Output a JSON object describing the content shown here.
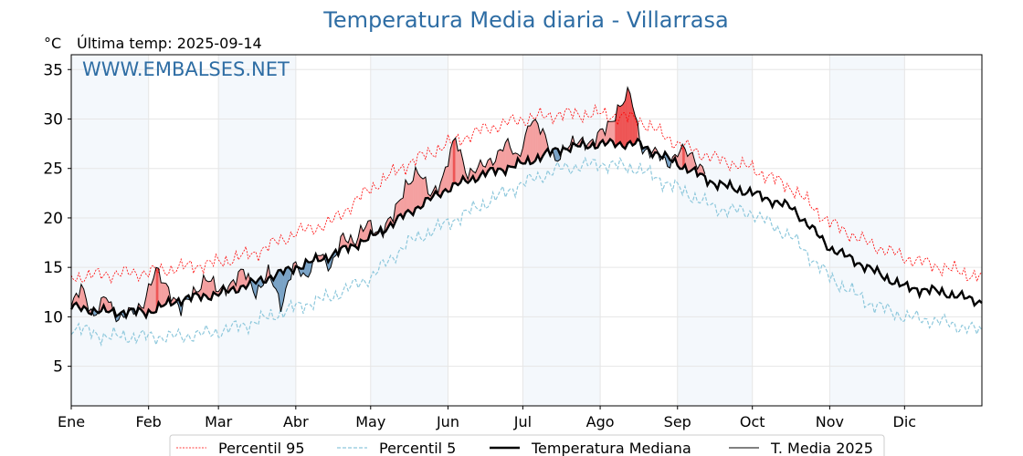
{
  "chart_data": {
    "type": "line",
    "title": "Temperatura Media diaria - Villarrasa",
    "unit_label": "°C",
    "last_temp_label": "Última temp: 2025-09-14",
    "watermark": "WWW.EMBALSES.NET",
    "ylim": [
      1,
      36.5
    ],
    "yticks": [
      5,
      10,
      15,
      20,
      25,
      30,
      35
    ],
    "xlim_days": [
      1,
      366
    ],
    "month_labels": [
      "Ene",
      "Feb",
      "Mar",
      "Abr",
      "May",
      "Jun",
      "Jul",
      "Ago",
      "Sep",
      "Oct",
      "Nov",
      "Dic"
    ],
    "month_start_days": [
      1,
      32,
      60,
      91,
      121,
      152,
      182,
      213,
      244,
      274,
      305,
      335
    ],
    "grid": true,
    "legend_position": "bottom",
    "colors": {
      "p95": "#ff0000",
      "p5": "#8ec8dc",
      "median": "#000000",
      "media2025": "#000000",
      "above_fill": "#f4a0a0",
      "above_fill_strong": "#ee5555",
      "below_fill": "#7aa3c6",
      "below_fill_strong": "#2f5f8a",
      "band": "#dce9f5",
      "title": "#2e6da4"
    },
    "series": [
      {
        "name": "Percentil 95",
        "key": "p95",
        "knots": [
          [
            1,
            14
          ],
          [
            15,
            14.3
          ],
          [
            32,
            14.5
          ],
          [
            45,
            15
          ],
          [
            60,
            15.5
          ],
          [
            75,
            16.5
          ],
          [
            91,
            18.5
          ],
          [
            105,
            19.5
          ],
          [
            121,
            23
          ],
          [
            136,
            25.5
          ],
          [
            152,
            27.5
          ],
          [
            167,
            29
          ],
          [
            182,
            30
          ],
          [
            197,
            30.5
          ],
          [
            213,
            30.5
          ],
          [
            228,
            30
          ],
          [
            244,
            27.5
          ],
          [
            259,
            26
          ],
          [
            274,
            25
          ],
          [
            290,
            23
          ],
          [
            305,
            19.5
          ],
          [
            320,
            17.5
          ],
          [
            335,
            16
          ],
          [
            350,
            15
          ],
          [
            366,
            14
          ]
        ]
      },
      {
        "name": "Percentil 5",
        "key": "p5",
        "knots": [
          [
            1,
            9
          ],
          [
            15,
            8
          ],
          [
            32,
            8
          ],
          [
            45,
            8
          ],
          [
            60,
            8.5
          ],
          [
            75,
            9.5
          ],
          [
            91,
            11
          ],
          [
            105,
            12
          ],
          [
            121,
            14
          ],
          [
            136,
            17.5
          ],
          [
            152,
            19.5
          ],
          [
            167,
            21.5
          ],
          [
            182,
            23.5
          ],
          [
            197,
            25
          ],
          [
            213,
            25.5
          ],
          [
            228,
            25
          ],
          [
            244,
            23
          ],
          [
            259,
            21
          ],
          [
            274,
            20.5
          ],
          [
            290,
            18
          ],
          [
            305,
            14
          ],
          [
            320,
            11.5
          ],
          [
            335,
            10
          ],
          [
            350,
            9.5
          ],
          [
            366,
            8.5
          ]
        ]
      },
      {
        "name": "Temperatura Mediana",
        "key": "median",
        "knots": [
          [
            1,
            11
          ],
          [
            15,
            10.5
          ],
          [
            32,
            10.5
          ],
          [
            45,
            11.8
          ],
          [
            60,
            12.3
          ],
          [
            75,
            13.5
          ],
          [
            91,
            15
          ],
          [
            105,
            16.2
          ],
          [
            121,
            18
          ],
          [
            136,
            20.5
          ],
          [
            152,
            23
          ],
          [
            167,
            24.5
          ],
          [
            182,
            25.5
          ],
          [
            197,
            27
          ],
          [
            213,
            27.5
          ],
          [
            228,
            27.5
          ],
          [
            244,
            25.5
          ],
          [
            259,
            23.5
          ],
          [
            274,
            22.5
          ],
          [
            290,
            21
          ],
          [
            305,
            17
          ],
          [
            320,
            15
          ],
          [
            335,
            13
          ],
          [
            350,
            12.5
          ],
          [
            366,
            11.5
          ]
        ]
      },
      {
        "name": "T. Media 2025",
        "key": "media2025",
        "knots": [
          [
            1,
            11
          ],
          [
            5,
            13.5
          ],
          [
            10,
            9.5
          ],
          [
            15,
            12.5
          ],
          [
            20,
            9.5
          ],
          [
            25,
            10.5
          ],
          [
            30,
            11.5
          ],
          [
            35,
            14.5
          ],
          [
            40,
            13
          ],
          [
            45,
            10.5
          ],
          [
            50,
            12.5
          ],
          [
            55,
            14
          ],
          [
            60,
            12.5
          ],
          [
            65,
            13.5
          ],
          [
            70,
            14.5
          ],
          [
            75,
            12.5
          ],
          [
            80,
            14.5
          ],
          [
            85,
            11
          ],
          [
            90,
            15.5
          ],
          [
            95,
            13.5
          ],
          [
            100,
            17
          ],
          [
            105,
            14.5
          ],
          [
            110,
            18.5
          ],
          [
            115,
            17.5
          ],
          [
            120,
            19.5
          ],
          [
            125,
            18.5
          ],
          [
            130,
            20
          ],
          [
            135,
            23.5
          ],
          [
            140,
            24.5
          ],
          [
            145,
            22.5
          ],
          [
            150,
            24
          ],
          [
            155,
            28
          ],
          [
            160,
            24.5
          ],
          [
            165,
            25
          ],
          [
            170,
            26
          ],
          [
            175,
            27.5
          ],
          [
            180,
            26
          ],
          [
            185,
            30
          ],
          [
            190,
            28.5
          ],
          [
            195,
            26
          ],
          [
            200,
            27
          ],
          [
            205,
            28
          ],
          [
            210,
            27.5
          ],
          [
            215,
            29
          ],
          [
            220,
            31
          ],
          [
            225,
            32.5
          ],
          [
            230,
            27
          ],
          [
            235,
            26.5
          ],
          [
            240,
            25.5
          ],
          [
            245,
            27
          ],
          [
            250,
            26
          ],
          [
            255,
            25
          ]
        ]
      }
    ],
    "legend": [
      "Percentil 95",
      "Percentil 5",
      "Temperatura Mediana",
      "T. Media 2025"
    ]
  }
}
